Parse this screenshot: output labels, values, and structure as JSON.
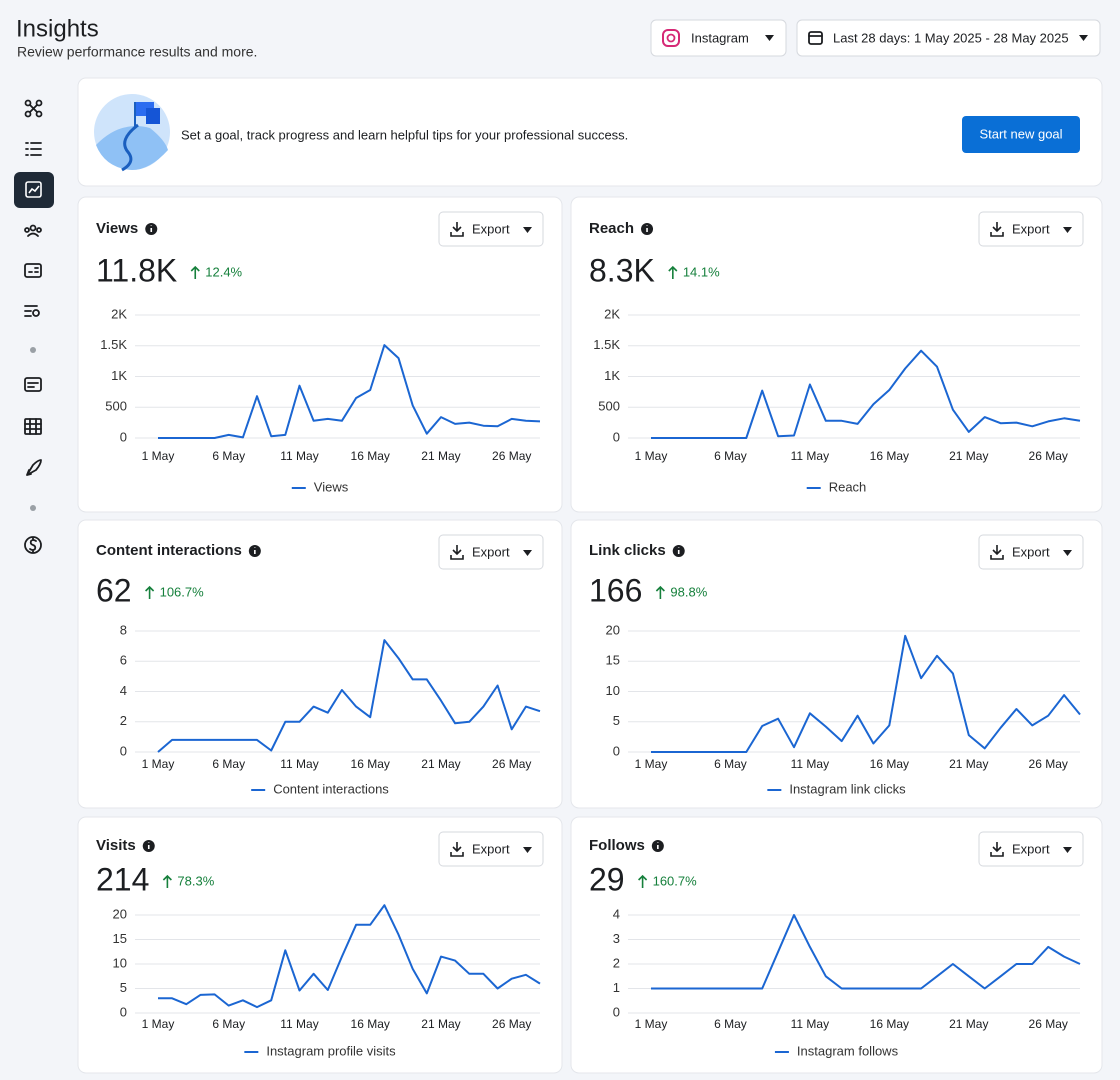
{
  "header": {
    "title": "Insights",
    "subtitle": "Review performance results and more."
  },
  "filters": {
    "platform": "Instagram",
    "date_range": "Last 28 days: 1 May 2025 - 28 May 2025"
  },
  "goal_banner": {
    "text": "Set a goal, track progress and learn helpful tips for your professional success.",
    "button": "Start new goal"
  },
  "export_label": "Export",
  "chart_data": [
    {
      "type": "line",
      "title": "Views",
      "total": "11.8K",
      "change": "12.4%",
      "categories": [
        "1 May",
        null,
        null,
        null,
        null,
        "6 May",
        null,
        null,
        null,
        null,
        "11 May",
        null,
        null,
        null,
        null,
        "16 May",
        null,
        null,
        null,
        null,
        "21 May",
        null,
        null,
        null,
        null,
        "26 May",
        null,
        null
      ],
      "series": [
        {
          "name": "Views",
          "color": "#1b66d2",
          "values": [
            0,
            0,
            0,
            0,
            0,
            50,
            10,
            680,
            30,
            50,
            850,
            280,
            310,
            280,
            650,
            780,
            1510,
            1300,
            530,
            70,
            340,
            230,
            250,
            200,
            190,
            310,
            280,
            270
          ]
        }
      ],
      "ylim": [
        0,
        2000
      ],
      "yticks": [
        0,
        500,
        {
          "value": 1000,
          "label": "1K"
        },
        {
          "value": 1500,
          "label": "1.5K"
        },
        {
          "value": 2000,
          "label": "2K"
        }
      ],
      "grid": true
    },
    {
      "type": "line",
      "title": "Reach",
      "total": "8.3K",
      "change": "14.1%",
      "categories": [
        "1 May",
        null,
        null,
        null,
        null,
        "6 May",
        null,
        null,
        null,
        null,
        "11 May",
        null,
        null,
        null,
        null,
        "16 May",
        null,
        null,
        null,
        null,
        "21 May",
        null,
        null,
        null,
        null,
        "26 May",
        null,
        null
      ],
      "series": [
        {
          "name": "Reach",
          "color": "#1b66d2",
          "values": [
            0,
            0,
            0,
            0,
            0,
            0,
            0,
            770,
            30,
            40,
            870,
            280,
            280,
            230,
            550,
            780,
            1130,
            1420,
            1160,
            460,
            100,
            340,
            240,
            250,
            190,
            270,
            320,
            280
          ]
        }
      ],
      "ylim": [
        0,
        2000
      ],
      "yticks": [
        0,
        500,
        {
          "value": 1000,
          "label": "1K"
        },
        {
          "value": 1500,
          "label": "1.5K"
        },
        {
          "value": 2000,
          "label": "2K"
        }
      ],
      "grid": true
    },
    {
      "type": "line",
      "title": "Content interactions",
      "total": "62",
      "change": "106.7%",
      "categories": [
        "1 May",
        null,
        null,
        null,
        null,
        "6 May",
        null,
        null,
        null,
        null,
        "11 May",
        null,
        null,
        null,
        null,
        "16 May",
        null,
        null,
        null,
        null,
        "21 May",
        null,
        null,
        null,
        null,
        "26 May",
        null,
        null
      ],
      "series": [
        {
          "name": "Content interactions",
          "color": "#1b66d2",
          "values": [
            0,
            0.8,
            0.8,
            0.8,
            0.8,
            0.8,
            0.8,
            0.8,
            0.1,
            2,
            2,
            3,
            2.6,
            4.1,
            3,
            2.3,
            7.4,
            6.2,
            4.8,
            4.8,
            3.4,
            1.9,
            2,
            3,
            4.4,
            1.5,
            3,
            2.7
          ]
        }
      ],
      "ylim": [
        0,
        8
      ],
      "yticks": [
        0,
        2,
        4,
        6,
        8
      ],
      "grid": true
    },
    {
      "type": "line",
      "title": "Link clicks",
      "total": "166",
      "change": "98.8%",
      "categories": [
        "1 May",
        null,
        null,
        null,
        null,
        "6 May",
        null,
        null,
        null,
        null,
        "11 May",
        null,
        null,
        null,
        null,
        "16 May",
        null,
        null,
        null,
        null,
        "21 May",
        null,
        null,
        null,
        null,
        "26 May",
        null,
        null
      ],
      "series": [
        {
          "name": "Instagram link clicks",
          "color": "#1b66d2",
          "values": [
            0,
            0,
            0,
            0,
            0,
            0,
            0,
            4.3,
            5.5,
            0.8,
            6.4,
            4.2,
            1.8,
            6,
            1.4,
            4.4,
            19.2,
            12.2,
            15.9,
            13,
            2.8,
            0.6,
            4,
            7.1,
            4.4,
            6,
            9.4,
            6.2
          ]
        }
      ],
      "ylim": [
        0,
        20
      ],
      "yticks": [
        0,
        5,
        10,
        15,
        20
      ],
      "grid": true
    },
    {
      "type": "line",
      "title": "Visits",
      "total": "214",
      "change": "78.3%",
      "categories": [
        "1 May",
        null,
        null,
        null,
        null,
        "6 May",
        null,
        null,
        null,
        null,
        "11 May",
        null,
        null,
        null,
        null,
        "16 May",
        null,
        null,
        null,
        null,
        "21 May",
        null,
        null,
        null,
        null,
        "26 May",
        null,
        null
      ],
      "series": [
        {
          "name": "Instagram profile visits",
          "color": "#1b66d2",
          "values": [
            3,
            3,
            1.8,
            3.7,
            3.8,
            1.5,
            2.6,
            1.2,
            2.6,
            12.8,
            4.6,
            8,
            4.7,
            11.5,
            18,
            18,
            22,
            16,
            9,
            4,
            11.5,
            10.7,
            8,
            8,
            5,
            7,
            7.8,
            6
          ]
        }
      ],
      "ylim": [
        0,
        20
      ],
      "yticks": [
        0,
        5,
        10,
        15,
        20
      ],
      "grid": true
    },
    {
      "type": "line",
      "title": "Follows",
      "total": "29",
      "change": "160.7%",
      "categories": [
        "1 May",
        null,
        null,
        null,
        null,
        "6 May",
        null,
        null,
        null,
        null,
        "11 May",
        null,
        null,
        null,
        null,
        "16 May",
        null,
        null,
        null,
        null,
        "21 May",
        null,
        null,
        null,
        null,
        "26 May",
        null,
        null
      ],
      "series": [
        {
          "name": "Instagram follows",
          "color": "#1b66d2",
          "values": [
            1,
            1,
            1,
            1,
            1,
            1,
            1,
            1,
            2.5,
            4,
            2.7,
            1.5,
            1,
            1,
            1,
            1,
            1,
            1,
            1.5,
            2,
            1.5,
            1,
            1.5,
            2,
            2,
            2.7,
            2.3,
            2
          ]
        }
      ],
      "ylim": [
        0,
        4
      ],
      "yticks": [
        0,
        1,
        2,
        3,
        4
      ],
      "grid": true
    }
  ]
}
